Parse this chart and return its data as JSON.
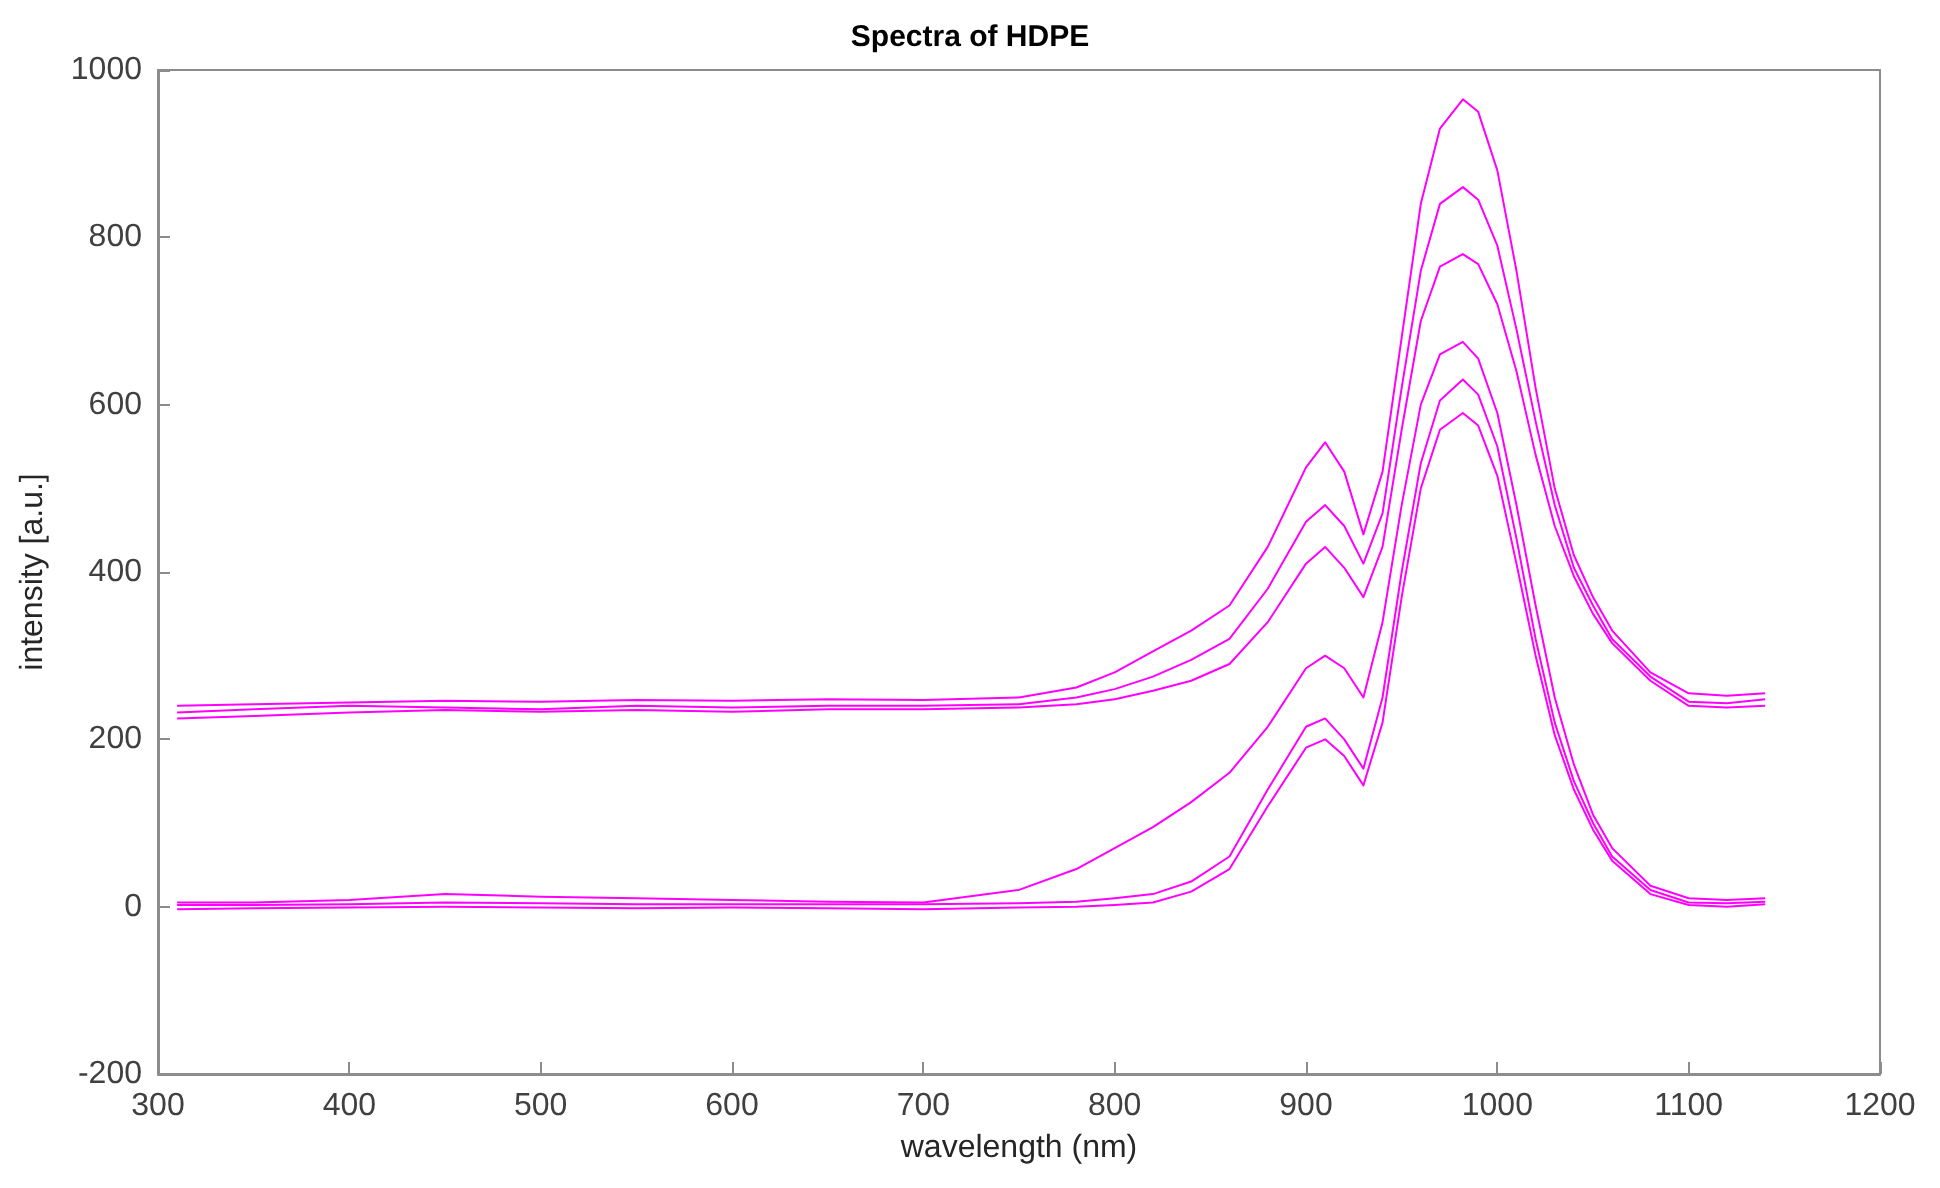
{
  "chart_data": {
    "type": "line",
    "title": "Spectra of HDPE",
    "xlabel": "wavelength (nm)",
    "ylabel": "intensity [a.u.]",
    "x": [
      310,
      350,
      400,
      450,
      500,
      550,
      600,
      650,
      700,
      750,
      780,
      800,
      820,
      840,
      860,
      880,
      900,
      910,
      920,
      930,
      940,
      950,
      960,
      970,
      982,
      990,
      1000,
      1010,
      1020,
      1030,
      1040,
      1050,
      1060,
      1080,
      1100,
      1120,
      1140
    ],
    "series": [
      {
        "color": "#ff00ff",
        "values": [
          240,
          242,
          244,
          246,
          245,
          247,
          246,
          248,
          247,
          250,
          262,
          280,
          305,
          330,
          360,
          430,
          525,
          555,
          520,
          445,
          520,
          680,
          840,
          930,
          965,
          950,
          880,
          760,
          620,
          500,
          420,
          370,
          330,
          280,
          255,
          252,
          255
        ]
      },
      {
        "color": "#ff00ff",
        "values": [
          232,
          236,
          240,
          238,
          236,
          240,
          238,
          240,
          240,
          242,
          250,
          260,
          275,
          295,
          320,
          380,
          460,
          480,
          455,
          410,
          470,
          620,
          760,
          840,
          860,
          845,
          790,
          690,
          580,
          480,
          405,
          360,
          320,
          275,
          245,
          243,
          248
        ]
      },
      {
        "color": "#ff00ff",
        "values": [
          225,
          228,
          232,
          235,
          233,
          235,
          233,
          236,
          236,
          238,
          242,
          248,
          258,
          270,
          290,
          340,
          410,
          430,
          405,
          370,
          430,
          570,
          700,
          765,
          780,
          768,
          720,
          640,
          540,
          455,
          395,
          350,
          315,
          270,
          240,
          238,
          240
        ]
      },
      {
        "color": "#ff00ff",
        "values": [
          5,
          5,
          8,
          15,
          12,
          10,
          8,
          6,
          5,
          20,
          45,
          70,
          95,
          125,
          160,
          215,
          285,
          300,
          285,
          250,
          340,
          480,
          600,
          660,
          675,
          655,
          590,
          480,
          360,
          250,
          170,
          110,
          70,
          25,
          10,
          8,
          10
        ]
      },
      {
        "color": "#ff00ff",
        "values": [
          2,
          2,
          3,
          5,
          4,
          3,
          3,
          3,
          3,
          4,
          6,
          10,
          15,
          30,
          60,
          140,
          215,
          225,
          200,
          165,
          250,
          400,
          530,
          605,
          630,
          612,
          550,
          440,
          320,
          220,
          150,
          100,
          60,
          20,
          5,
          4,
          6
        ]
      },
      {
        "color": "#ff00ff",
        "values": [
          -3,
          -2,
          -1,
          0,
          -1,
          -2,
          -1,
          -2,
          -3,
          -1,
          0,
          2,
          5,
          18,
          45,
          120,
          190,
          200,
          180,
          145,
          220,
          370,
          500,
          570,
          590,
          575,
          515,
          410,
          300,
          205,
          140,
          92,
          55,
          15,
          2,
          0,
          3
        ]
      }
    ],
    "xlim": [
      300,
      1200
    ],
    "xticks": [
      300,
      400,
      500,
      600,
      700,
      800,
      900,
      1000,
      1100,
      1200
    ],
    "ylim": [
      -200,
      1000
    ],
    "yticks": [
      -200,
      0,
      200,
      400,
      600,
      800,
      1000
    ],
    "grid": false,
    "marker": "none",
    "line_style": "solid"
  }
}
